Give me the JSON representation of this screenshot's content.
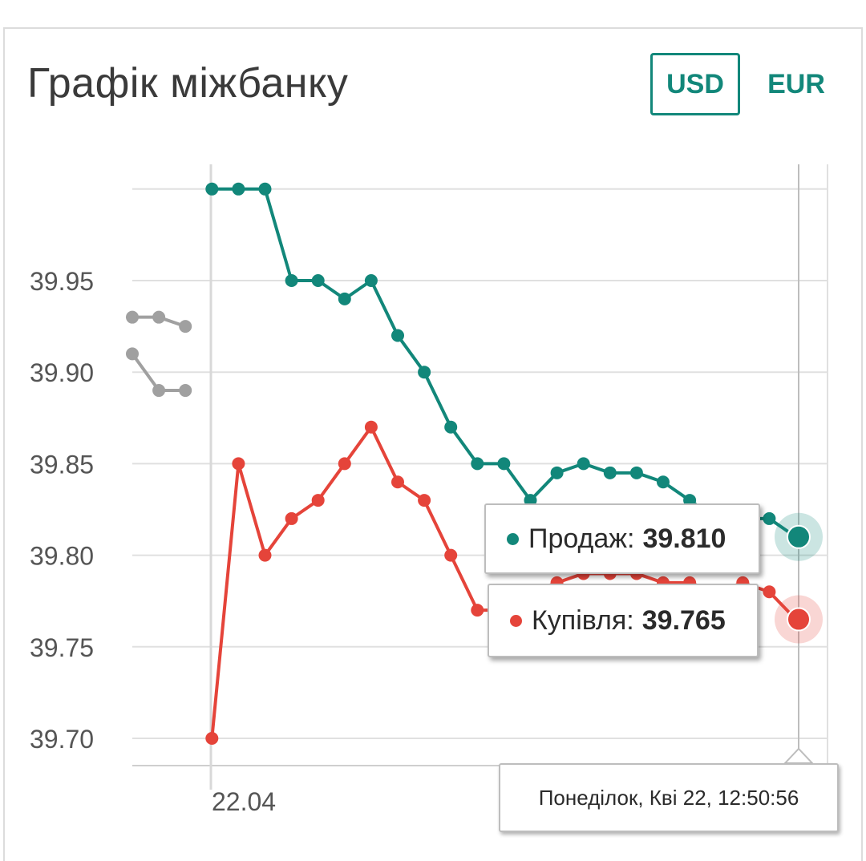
{
  "header": {
    "title": "Графік міжбанку",
    "currencies": [
      {
        "label": "USD",
        "selected": true
      },
      {
        "label": "EUR",
        "selected": false
      }
    ]
  },
  "colors": {
    "sell": "#12877a",
    "buy": "#e5443a",
    "previous": "#a0a0a0",
    "grid": "#e0e0e0",
    "axis_text": "#555555"
  },
  "tooltip": {
    "sell_label": "Продаж:",
    "sell_value": "39.810",
    "buy_label": "Купівля:",
    "buy_value": "39.765",
    "date": "Понеділок, Кві 22, 12:50:56"
  },
  "chart_data": {
    "type": "line",
    "title": "Графік міжбанку",
    "y_ticks": [
      "39.70",
      "39.75",
      "39.80",
      "39.85",
      "39.90",
      "39.95"
    ],
    "ylim": [
      39.69,
      40.0
    ],
    "x_tick_label": "22.04",
    "grid": true,
    "series": [
      {
        "name": "Продаж",
        "role": "sell",
        "start_index": 3,
        "values": [
          40.0,
          40.0,
          40.0,
          39.95,
          39.95,
          39.94,
          39.95,
          39.92,
          39.9,
          39.87,
          39.85,
          39.85,
          39.83,
          39.845,
          39.85,
          39.845,
          39.845,
          39.84,
          39.83,
          39.82,
          39.82,
          39.82,
          39.81
        ]
      },
      {
        "name": "Купівля",
        "role": "buy",
        "start_index": 3,
        "values": [
          39.7,
          39.85,
          39.8,
          39.82,
          39.83,
          39.85,
          39.87,
          39.84,
          39.83,
          39.8,
          39.77,
          39.77,
          39.78,
          39.785,
          39.79,
          39.79,
          39.79,
          39.785,
          39.785,
          39.78,
          39.785,
          39.78,
          39.765
        ]
      },
      {
        "role": "previous-sell",
        "start_index": 0,
        "values": [
          39.93,
          39.93,
          39.925
        ]
      },
      {
        "role": "previous-buy",
        "start_index": 0,
        "values": [
          39.91,
          39.89,
          39.89
        ]
      }
    ]
  }
}
